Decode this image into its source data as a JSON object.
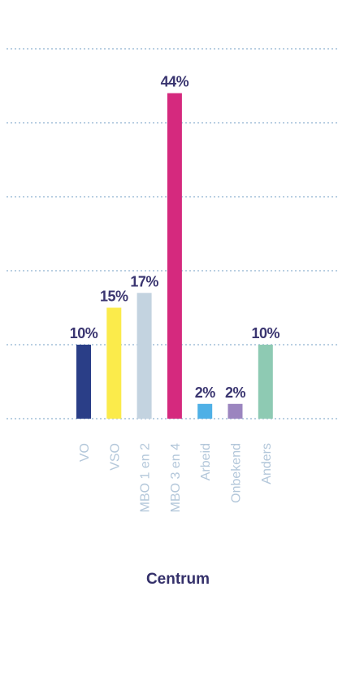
{
  "chart_data": {
    "type": "bar",
    "title": "Centrum",
    "ylim": [
      0,
      50
    ],
    "grid": true,
    "categories": [
      "VO",
      "VSO",
      "MBO 1 en 2",
      "MBO 3 en 4",
      "Arbeid",
      "Onbekend",
      "Anders"
    ],
    "values": [
      10,
      15,
      17,
      44,
      2,
      2,
      10
    ],
    "value_labels": [
      "10%",
      "15%",
      "17%",
      "44%",
      "2%",
      "2%",
      "10%"
    ],
    "colors": [
      "#2a3e87",
      "#fbeb4b",
      "#c3d3e0",
      "#d5297e",
      "#4fb0e6",
      "#9b85bf",
      "#8ecab3"
    ]
  }
}
